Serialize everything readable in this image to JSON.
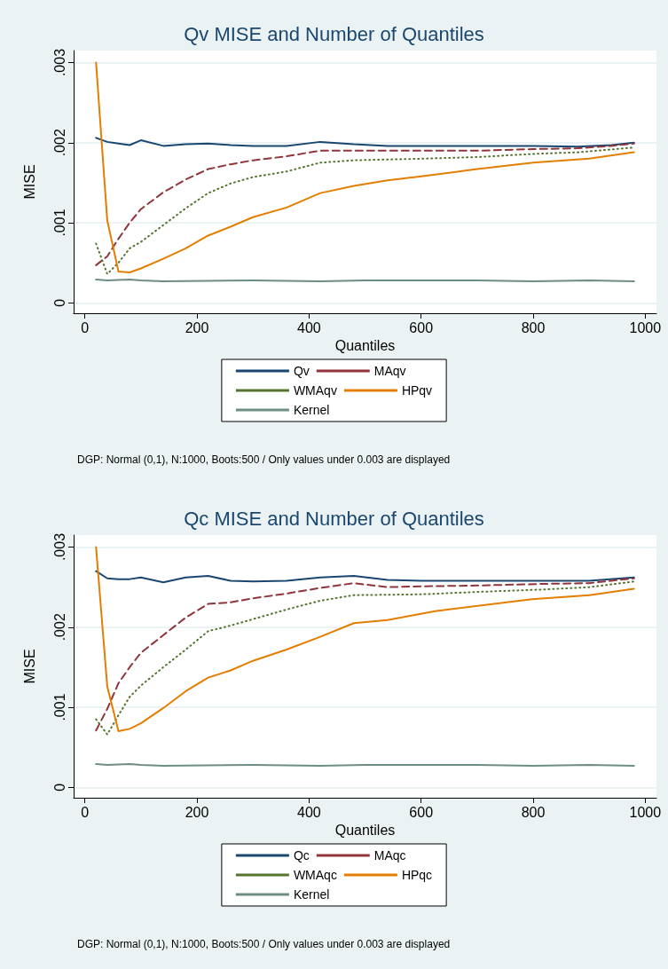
{
  "chart_data": [
    {
      "type": "line",
      "title": "Qv MISE and Number of Quantiles",
      "xlabel": "Quantiles",
      "ylabel": "MISE",
      "legend": "bottom",
      "grid": "y",
      "marker": "none",
      "xlim": [
        -20,
        1020
      ],
      "ylim": [
        -0.00013,
        0.00315
      ],
      "xticks": [
        0,
        200,
        400,
        600,
        800,
        1000
      ],
      "yticks": [
        0,
        {
          "value": 0.001,
          "label": ".001"
        },
        {
          "value": 0.002,
          "label": ".002"
        },
        {
          "value": 0.003,
          "label": ".003"
        }
      ],
      "annotations": [
        "DGP: Normal (0,1), N:1000, Boots:500 / Only values under 0.003 are displayed"
      ],
      "series": [
        {
          "name": "Qv",
          "color": "#1a476f",
          "line_style": "solid",
          "x": [
            20,
            40,
            60,
            80,
            100,
            140,
            180,
            220,
            260,
            300,
            360,
            420,
            480,
            540,
            600,
            700,
            800,
            880,
            940,
            980
          ],
          "values": [
            0.00206,
            0.00201,
            0.00199,
            0.00197,
            0.00203,
            0.00196,
            0.00198,
            0.00199,
            0.00197,
            0.00196,
            0.00196,
            0.00201,
            0.00198,
            0.00196,
            0.00196,
            0.00196,
            0.00196,
            0.00195,
            0.00197,
            0.002
          ]
        },
        {
          "name": "MAqv",
          "color": "#90353b",
          "line_style": "dashed",
          "x": [
            20,
            40,
            60,
            80,
            100,
            140,
            180,
            220,
            260,
            300,
            360,
            420,
            480,
            600,
            700,
            800,
            880,
            940,
            980
          ],
          "values": [
            0.00047,
            0.00058,
            0.0008,
            0.001,
            0.00117,
            0.00138,
            0.00154,
            0.00167,
            0.00173,
            0.00178,
            0.00183,
            0.0019,
            0.0019,
            0.0019,
            0.0019,
            0.00192,
            0.00193,
            0.00196,
            0.00199
          ]
        },
        {
          "name": "WMAqv",
          "color": "#55752f",
          "line_style": "dotted",
          "x": [
            20,
            40,
            60,
            80,
            100,
            140,
            180,
            220,
            260,
            300,
            360,
            420,
            480,
            600,
            700,
            800,
            880,
            980
          ],
          "values": [
            0.00074,
            0.00036,
            0.0005,
            0.00068,
            0.00076,
            0.00097,
            0.00118,
            0.00137,
            0.00149,
            0.00157,
            0.00164,
            0.00175,
            0.00178,
            0.0018,
            0.00182,
            0.00186,
            0.00188,
            0.00194
          ]
        },
        {
          "name": "HPqv",
          "color": "#e37e00",
          "line_style": "solid",
          "x": [
            20,
            40,
            60,
            80,
            100,
            140,
            180,
            220,
            260,
            300,
            360,
            420,
            480,
            540,
            600,
            700,
            800,
            900,
            980
          ],
          "values": [
            0.003,
            0.00103,
            0.00039,
            0.00038,
            0.00043,
            0.00055,
            0.00068,
            0.00084,
            0.00095,
            0.00107,
            0.00119,
            0.00137,
            0.00146,
            0.00153,
            0.00158,
            0.00167,
            0.00175,
            0.0018,
            0.00188
          ]
        },
        {
          "name": "Kernel",
          "color": "#6e8e84",
          "line_style": "solid",
          "x": [
            20,
            40,
            80,
            100,
            140,
            300,
            420,
            500,
            700,
            800,
            900,
            980
          ],
          "values": [
            0.00029,
            0.00028,
            0.00029,
            0.00028,
            0.00027,
            0.00028,
            0.00027,
            0.00028,
            0.00028,
            0.00027,
            0.00028,
            0.00027
          ]
        }
      ]
    },
    {
      "type": "line",
      "title": "Qc MISE and Number of Quantiles",
      "xlabel": "Quantiles",
      "ylabel": "MISE",
      "legend": "bottom",
      "grid": "y",
      "marker": "none",
      "xlim": [
        -20,
        1020
      ],
      "ylim": [
        -0.00013,
        0.00315
      ],
      "xticks": [
        0,
        200,
        400,
        600,
        800,
        1000
      ],
      "yticks": [
        0,
        {
          "value": 0.001,
          "label": ".001"
        },
        {
          "value": 0.002,
          "label": ".002"
        },
        {
          "value": 0.003,
          "label": ".003"
        }
      ],
      "annotations": [
        "DGP: Normal (0,1), N:1000, Boots:500 / Only values under 0.003 are displayed"
      ],
      "series": [
        {
          "name": "Qc",
          "color": "#1a476f",
          "line_style": "solid",
          "x": [
            20,
            40,
            60,
            80,
            100,
            140,
            180,
            220,
            260,
            300,
            360,
            420,
            480,
            540,
            600,
            700,
            800,
            900,
            980
          ],
          "values": [
            0.0027,
            0.00261,
            0.0026,
            0.0026,
            0.00262,
            0.00256,
            0.00262,
            0.00264,
            0.00258,
            0.00257,
            0.00258,
            0.00262,
            0.00264,
            0.00259,
            0.00258,
            0.00258,
            0.00258,
            0.00258,
            0.00262
          ]
        },
        {
          "name": "MAqc",
          "color": "#90353b",
          "line_style": "dashed",
          "x": [
            20,
            40,
            60,
            80,
            100,
            140,
            180,
            220,
            260,
            300,
            360,
            420,
            480,
            540,
            600,
            700,
            815,
            900,
            980
          ],
          "values": [
            0.00071,
            0.00098,
            0.0013,
            0.0015,
            0.00168,
            0.0019,
            0.00212,
            0.00229,
            0.00231,
            0.00236,
            0.00242,
            0.00249,
            0.00255,
            0.0025,
            0.00251,
            0.00252,
            0.00254,
            0.00255,
            0.00261
          ]
        },
        {
          "name": "WMAqc",
          "color": "#55752f",
          "line_style": "dotted",
          "x": [
            20,
            40,
            60,
            80,
            100,
            140,
            180,
            220,
            260,
            300,
            360,
            420,
            480,
            600,
            700,
            815,
            900,
            980
          ],
          "values": [
            0.00085,
            0.00066,
            0.0009,
            0.00113,
            0.00127,
            0.0015,
            0.00172,
            0.00195,
            0.00202,
            0.0021,
            0.00222,
            0.00233,
            0.0024,
            0.00241,
            0.00244,
            0.00247,
            0.0025,
            0.00257
          ]
        },
        {
          "name": "HPqc",
          "color": "#e37e00",
          "line_style": "solid",
          "x": [
            20,
            40,
            60,
            80,
            100,
            140,
            180,
            220,
            260,
            300,
            360,
            420,
            480,
            540,
            625,
            798,
            900,
            980
          ],
          "values": [
            0.003,
            0.00126,
            0.0007,
            0.00073,
            0.0008,
            0.00099,
            0.0012,
            0.00137,
            0.00146,
            0.00158,
            0.00172,
            0.00188,
            0.00205,
            0.00209,
            0.0022,
            0.00235,
            0.0024,
            0.00248
          ]
        },
        {
          "name": "Kernel",
          "color": "#6e8e84",
          "line_style": "solid",
          "x": [
            20,
            40,
            80,
            100,
            140,
            300,
            420,
            500,
            700,
            800,
            900,
            980
          ],
          "values": [
            0.00029,
            0.00028,
            0.00029,
            0.00028,
            0.00027,
            0.00028,
            0.00027,
            0.00028,
            0.00028,
            0.00027,
            0.00028,
            0.00027
          ]
        }
      ]
    }
  ]
}
